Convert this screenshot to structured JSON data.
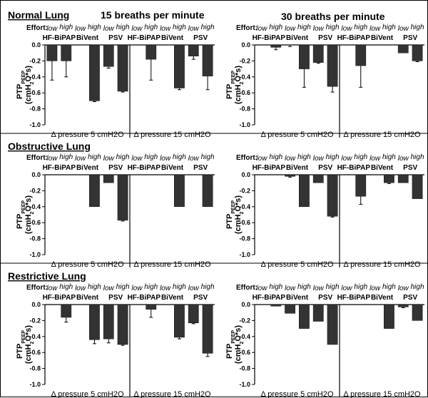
{
  "col_titles": [
    "15 breaths per minute",
    "30 breaths per minute"
  ],
  "effort_label": "Effort:",
  "effort_levels": [
    "low",
    "high"
  ],
  "chart_data": {
    "type": "bar",
    "ylabel": "PTP_PEEP (cmH2O*s)",
    "ylim": [
      -1.0,
      0.0
    ],
    "yticks": [
      "0.0",
      "-0.2",
      "-0.4",
      "-0.6",
      "-0.8",
      "-1.0"
    ],
    "modes": [
      "HF-BiPAP",
      "BiVent",
      "PSV"
    ],
    "panels": [
      "Δ pressure 5 cmH2O",
      "Δ pressure 15 cmH2O"
    ],
    "bars_order": "for each panel: HF-BiPAP low, HF-BiPAP high, BiVent low, BiVent high, PSV low, PSV high",
    "groups": [
      {
        "name": "Normal Lung",
        "rates": [
          {
            "rate": "15 breaths per minute",
            "values": [
              [
                -0.2,
                -0.2,
                0,
                -0.7,
                -0.27,
                -0.58
              ],
              [
                0,
                -0.18,
                0,
                -0.54,
                -0.14,
                -0.39
              ]
            ],
            "errors": [
              [
                0.24,
                0.2,
                0,
                0.01,
                0.02,
                0.01
              ],
              [
                0,
                0.26,
                0,
                0.02,
                0.04,
                0.17
              ]
            ]
          },
          {
            "rate": "30 breaths per minute",
            "values": [
              [
                0,
                -0.03,
                0,
                -0.3,
                -0.22,
                -0.52
              ],
              [
                0,
                -0.26,
                0,
                0,
                -0.1,
                -0.2
              ]
            ],
            "errors": [
              [
                0,
                0.03,
                0.02,
                0.23,
                0.01,
                0.07
              ],
              [
                0,
                0.27,
                0,
                0,
                0,
                0.01
              ]
            ]
          }
        ]
      },
      {
        "name": "Obstructive Lung",
        "rates": [
          {
            "rate": "15 breaths per minute",
            "values": [
              [
                0,
                0,
                0,
                -0.4,
                -0.1,
                -0.57
              ],
              [
                0,
                0,
                0,
                -0.4,
                0,
                -0.4
              ]
            ],
            "errors": [
              [
                0,
                0,
                0,
                0,
                0,
                0.01
              ],
              [
                0,
                0,
                0,
                0,
                0,
                0
              ]
            ]
          },
          {
            "rate": "30 breaths per minute",
            "values": [
              [
                0,
                0,
                -0.02,
                -0.4,
                -0.1,
                -0.52
              ],
              [
                0,
                -0.27,
                0,
                -0.1,
                -0.1,
                -0.3
              ]
            ],
            "errors": [
              [
                0,
                0,
                0.01,
                0,
                0,
                0.01
              ],
              [
                0,
                0.1,
                0,
                0.01,
                0,
                0
              ]
            ]
          }
        ]
      },
      {
        "name": "Restrictive Lung",
        "rates": [
          {
            "rate": "15 breaths per minute",
            "values": [
              [
                0,
                -0.16,
                0,
                -0.44,
                -0.43,
                -0.5
              ],
              [
                0,
                -0.06,
                0,
                -0.41,
                -0.23,
                -0.61
              ]
            ],
            "errors": [
              [
                0,
                0.06,
                0,
                0.05,
                0.05,
                0.01
              ],
              [
                0,
                0.1,
                0,
                0.02,
                0.01,
                0.04
              ]
            ]
          },
          {
            "rate": "30 breaths per minute",
            "values": [
              [
                0,
                -0.02,
                -0.11,
                -0.3,
                -0.21,
                -0.5
              ],
              [
                0,
                0,
                0,
                -0.3,
                -0.03,
                -0.2
              ]
            ],
            "errors": [
              [
                0,
                0,
                0,
                0,
                0,
                0
              ],
              [
                0,
                0,
                0,
                0,
                0.01,
                0
              ]
            ]
          }
        ]
      }
    ]
  }
}
